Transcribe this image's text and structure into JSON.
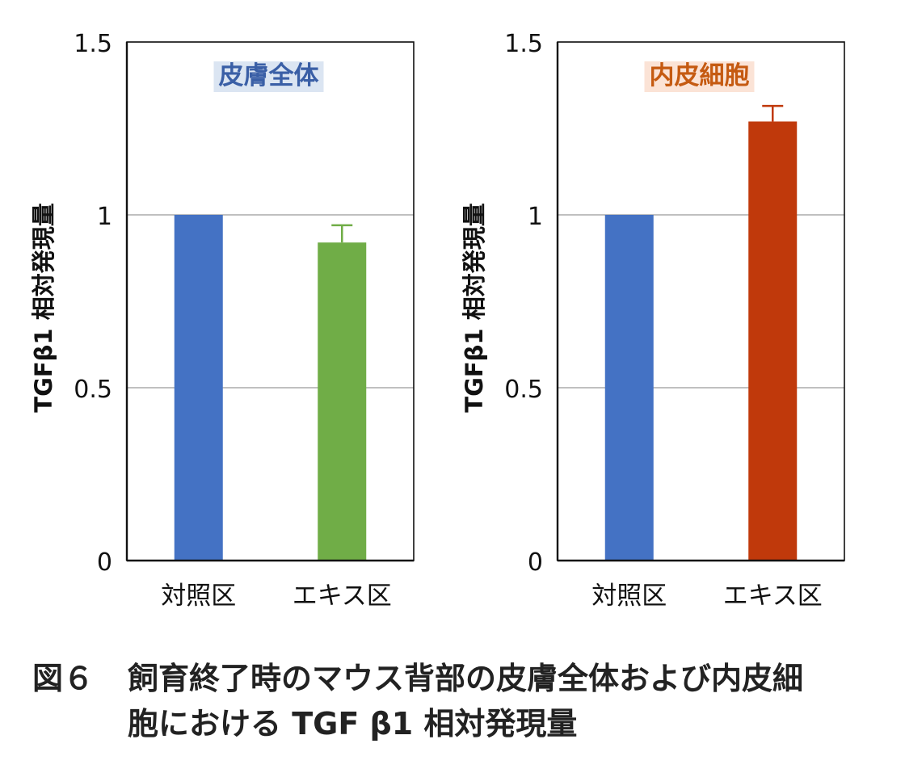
{
  "chart_data": [
    {
      "type": "bar",
      "title": "皮膚全体",
      "title_color": "#3a5fa6",
      "title_highlight": "#dbe5f2",
      "ylabel": "TGFβ1 相対発現量",
      "ylim": [
        0,
        1.5
      ],
      "yticks": [
        "0",
        "0.5",
        "1",
        "1.5"
      ],
      "grid": true,
      "categories": [
        "対照区",
        "エキス区"
      ],
      "values": [
        1.0,
        0.92
      ],
      "errors": [
        0,
        0.05
      ],
      "colors": [
        "#4472c4",
        "#70ad47"
      ]
    },
    {
      "type": "bar",
      "title": "内皮細胞",
      "title_color": "#c55a11",
      "title_highlight": "#fbe3d6",
      "ylabel": "TGFβ1 相対発現量",
      "ylim": [
        0,
        1.5
      ],
      "yticks": [
        "0",
        "0.5",
        "1",
        "1.5"
      ],
      "grid": true,
      "categories": [
        "対照区",
        "エキス区"
      ],
      "values": [
        1.0,
        1.27
      ],
      "errors": [
        0,
        0.045
      ],
      "colors": [
        "#4472c4",
        "#c0390b"
      ]
    }
  ],
  "caption": {
    "figure_label": "図６",
    "line1": "飼育終了時のマウス背部の皮膚全体および内皮細",
    "line2": "胞における TGF β1 相対発現量"
  }
}
